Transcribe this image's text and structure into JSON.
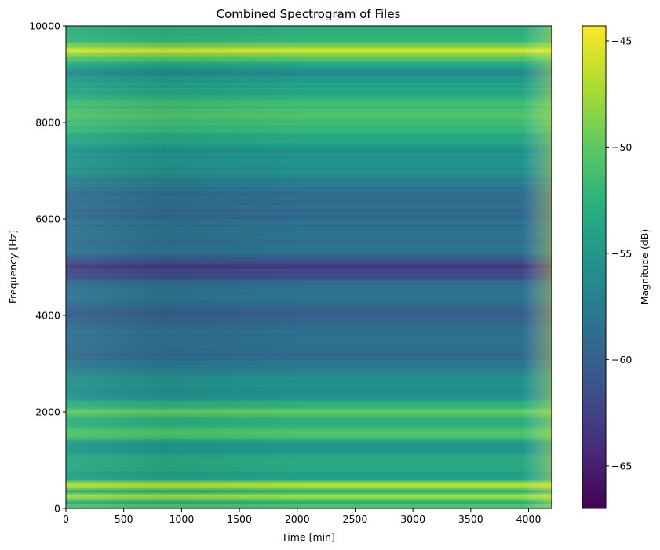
{
  "chart_data": {
    "type": "heatmap",
    "title": "Combined Spectrogram of Files",
    "xlabel": "Time [min]",
    "ylabel": "Frequency [Hz]",
    "xlim": [
      0,
      4200
    ],
    "ylim": [
      0,
      10000
    ],
    "xticks": [
      0,
      500,
      1000,
      1500,
      2000,
      2500,
      3000,
      3500,
      4000
    ],
    "xtick_labels": [
      "0",
      "500",
      "1000",
      "1500",
      "2000",
      "2500",
      "3000",
      "3500",
      "4000"
    ],
    "yticks": [
      0,
      2000,
      4000,
      6000,
      8000,
      10000
    ],
    "ytick_labels": [
      "0",
      "2000",
      "4000",
      "6000",
      "8000",
      "10000"
    ],
    "colormap": "viridis",
    "colorbar": {
      "label": "Magnitude (dB)",
      "range": [
        -67,
        -44.3
      ],
      "ticks": [
        -65,
        -60,
        -55,
        -50,
        -45
      ],
      "tick_labels": [
        "−65",
        "−60",
        "−55",
        "−50",
        "−45"
      ]
    },
    "frequency_profile_db": [
      {
        "f": 0,
        "db": -50
      },
      {
        "f": 150,
        "db": -53
      },
      {
        "f": 250,
        "db": -46
      },
      {
        "f": 350,
        "db": -53
      },
      {
        "f": 480,
        "db": -46
      },
      {
        "f": 650,
        "db": -55
      },
      {
        "f": 950,
        "db": -53
      },
      {
        "f": 1300,
        "db": -55
      },
      {
        "f": 1600,
        "db": -50
      },
      {
        "f": 1800,
        "db": -54
      },
      {
        "f": 2000,
        "db": -50
      },
      {
        "f": 2300,
        "db": -55
      },
      {
        "f": 2800,
        "db": -56
      },
      {
        "f": 3200,
        "db": -59
      },
      {
        "f": 3600,
        "db": -58
      },
      {
        "f": 4000,
        "db": -60
      },
      {
        "f": 4500,
        "db": -58
      },
      {
        "f": 5000,
        "db": -63
      },
      {
        "f": 5400,
        "db": -58
      },
      {
        "f": 6000,
        "db": -59
      },
      {
        "f": 6500,
        "db": -59
      },
      {
        "f": 7000,
        "db": -56
      },
      {
        "f": 7500,
        "db": -55
      },
      {
        "f": 8000,
        "db": -51
      },
      {
        "f": 8300,
        "db": -51
      },
      {
        "f": 8700,
        "db": -54
      },
      {
        "f": 9100,
        "db": -56
      },
      {
        "f": 9500,
        "db": -46
      },
      {
        "f": 9700,
        "db": -52
      },
      {
        "f": 10000,
        "db": -53
      }
    ]
  }
}
